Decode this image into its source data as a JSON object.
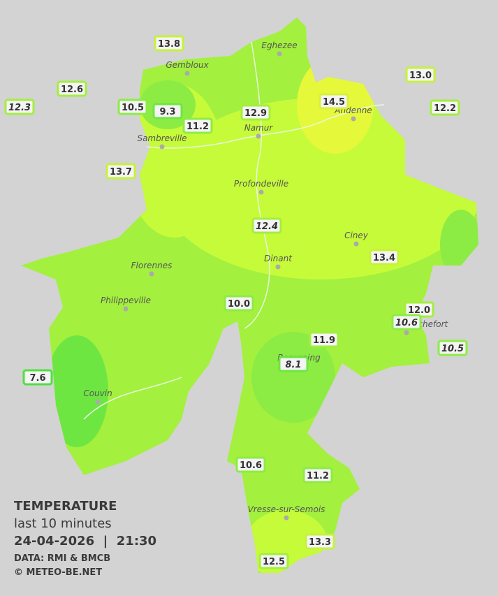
{
  "title": {
    "heading": "TEMPERATURE",
    "period": "last 10 minutes",
    "datetime": "24-04-2026  |  21:30",
    "source": "DATA: RMI & BMCB",
    "credit": "© METEO-BE.NET"
  },
  "cities": [
    "Eghezee",
    "Gembloux",
    "Andenne",
    "Namur",
    "Sambreville",
    "Profondeville",
    "Ciney",
    "Dinant",
    "Florennes",
    "Philippeville",
    "Rochefort",
    "Beauraing",
    "Couvin",
    "Vresse-sur-Semois"
  ],
  "stations": [
    "13.8",
    "12.6",
    "12.3",
    "10.5",
    "9.3",
    "11.2",
    "12.9",
    "14.5",
    "13.0",
    "12.2",
    "13.7",
    "12.4",
    "13.4",
    "10.0",
    "12.0",
    "10.6",
    "11.9",
    "10.5",
    "8.1",
    "7.6",
    "10.6",
    "11.2",
    "13.3",
    "12.5"
  ]
}
